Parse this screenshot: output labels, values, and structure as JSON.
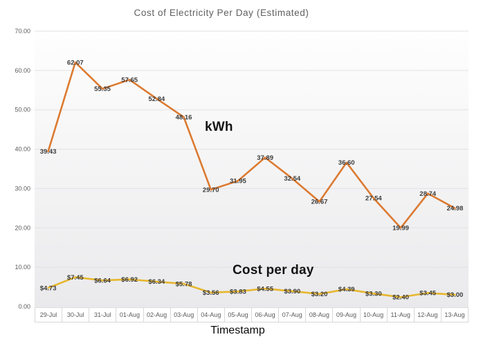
{
  "chart_data": {
    "type": "line",
    "title": "Cost of Electricity Per Day (Estimated)",
    "xlabel": "Timestamp",
    "ylabel": "",
    "ylim": [
      0,
      70
    ],
    "yticks": [
      0,
      10,
      20,
      30,
      40,
      50,
      60,
      70
    ],
    "ytick_labels": [
      "0.00",
      "10.00",
      "20.00",
      "30.00",
      "40.00",
      "50.00",
      "60.00",
      "70.00"
    ],
    "grid": "horizontal",
    "legend_position": "none",
    "categories": [
      "29-Jul",
      "30-Jul",
      "31-Jul",
      "01-Aug",
      "02-Aug",
      "03-Aug",
      "04-Aug",
      "05-Aug",
      "06-Aug",
      "07-Aug",
      "08-Aug",
      "09-Aug",
      "10-Aug",
      "11-Aug",
      "12-Aug",
      "13-Aug"
    ],
    "series": [
      {
        "name": "kWh",
        "color": "#dc7a30",
        "values": [
          39.43,
          62.07,
          55.35,
          57.65,
          52.84,
          48.16,
          29.7,
          31.95,
          37.89,
          32.54,
          26.67,
          36.6,
          27.54,
          19.99,
          28.74,
          24.98
        ],
        "labels": [
          "39.43",
          "62.07",
          "55.35",
          "57.65",
          "52.84",
          "48.16",
          "29.70",
          "31.95",
          "37.89",
          "32.54",
          "26.67",
          "36.60",
          "27.54",
          "19.99",
          "28.74",
          "24.98"
        ]
      },
      {
        "name": "Cost per day",
        "color": "#e7b62d",
        "values": [
          4.73,
          7.45,
          6.64,
          6.92,
          6.34,
          5.78,
          3.56,
          3.83,
          4.55,
          3.9,
          3.2,
          4.39,
          3.3,
          2.4,
          3.45,
          3.0
        ],
        "labels": [
          "$4.73",
          "$7.45",
          "$6.64",
          "$6.92",
          "$6.34",
          "$5.78",
          "$3.56",
          "$3.83",
          "$4.55",
          "$3.90",
          "$3.20",
          "$4.39",
          "$3.30",
          "$2.40",
          "$3.45",
          "$3.00"
        ]
      }
    ],
    "annotations": [
      {
        "text": "kWh"
      },
      {
        "text": "Cost per day"
      }
    ],
    "colors": {
      "grid": "#e2e2e4",
      "plot_bg_top": "#fefefe",
      "plot_bg_bottom": "#eaeaec",
      "axis_text": "#5a5a5a",
      "data_label": "#3c3c3c"
    }
  }
}
